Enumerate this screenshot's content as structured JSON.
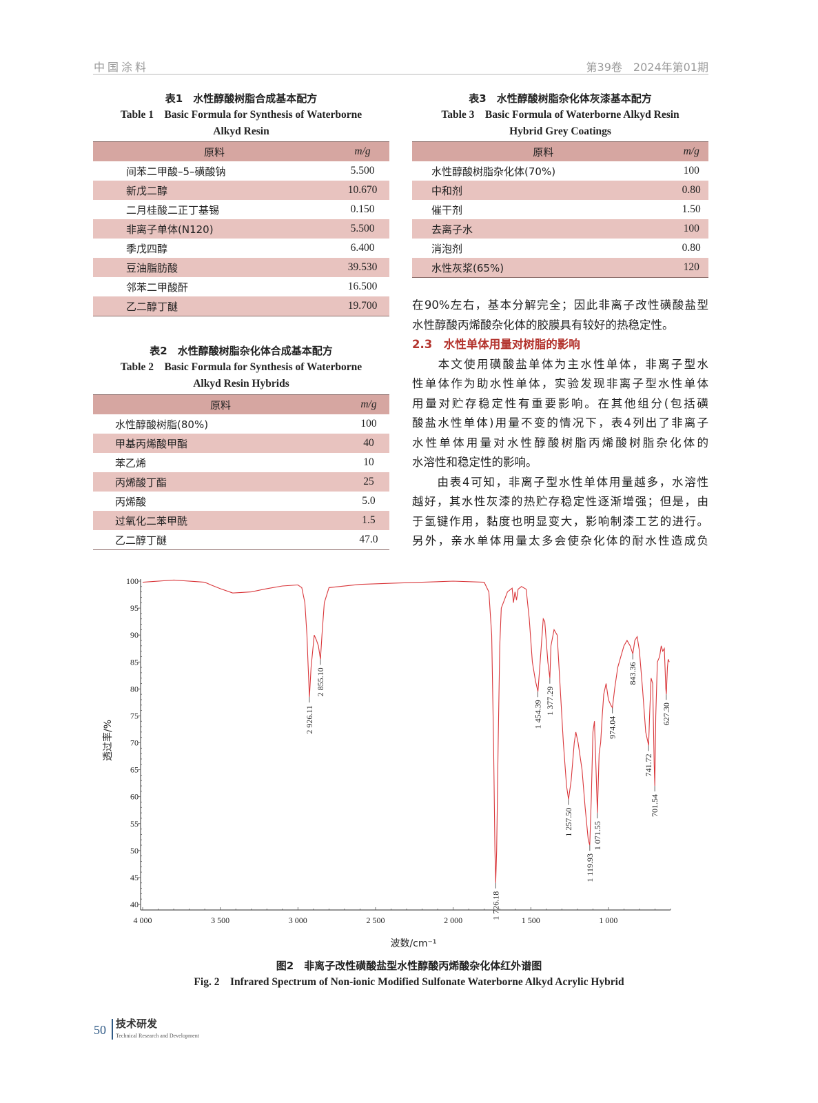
{
  "header": {
    "journal": "中国涂料",
    "issue": "第39卷　2024年第01期"
  },
  "table1": {
    "title_zh": "表1　水性醇酸树脂合成基本配方",
    "title_en_1": "Table 1　Basic Formula for Synthesis of Waterborne",
    "title_en_2": "Alkyd Resin",
    "columns": [
      "原料",
      "m/g"
    ],
    "rows": [
      [
        "间苯二甲酸–5–磺酸钠",
        "5.500"
      ],
      [
        "新戊二醇",
        "10.670"
      ],
      [
        "二月桂酸二正丁基锡",
        "0.150"
      ],
      [
        "非离子单体(N120)",
        "5.500"
      ],
      [
        "季戊四醇",
        "6.400"
      ],
      [
        "豆油脂肪酸",
        "39.530"
      ],
      [
        "邻苯二甲酸酐",
        "16.500"
      ],
      [
        "乙二醇丁醚",
        "19.700"
      ]
    ]
  },
  "table2": {
    "title_zh": "表2　水性醇酸树脂杂化体合成基本配方",
    "title_en_1": "Table 2　Basic Formula for Synthesis of Waterborne",
    "title_en_2": "Alkyd Resin Hybrids",
    "columns": [
      "原料",
      "m/g"
    ],
    "rows": [
      [
        "水性醇酸树脂(80%)",
        "100"
      ],
      [
        "甲基丙烯酸甲酯",
        "40"
      ],
      [
        "苯乙烯",
        "10"
      ],
      [
        "丙烯酸丁酯",
        "25"
      ],
      [
        "丙烯酸",
        "5.0"
      ],
      [
        "过氧化二苯甲酰",
        "1.5"
      ],
      [
        "乙二醇丁醚",
        "47.0"
      ]
    ]
  },
  "table3": {
    "title_zh": "表3　水性醇酸树脂杂化体灰漆基本配方",
    "title_en_1": "Table 3　Basic Formula of Waterborne Alkyd Resin",
    "title_en_2": "Hybrid Grey Coatings",
    "columns": [
      "原料",
      "m/g"
    ],
    "rows": [
      [
        "水性醇酸树脂杂化体(70%)",
        "100"
      ],
      [
        "中和剂",
        "0.80"
      ],
      [
        "催干剂",
        "1.50"
      ],
      [
        "去离子水",
        "100"
      ],
      [
        "消泡剂",
        "0.80"
      ],
      [
        "水性灰浆(65%)",
        "120"
      ]
    ]
  },
  "body": {
    "lines_a": [
      "在90%左右，基本分解完全；因此非离子改性磺酸盐型",
      "水性醇酸丙烯酸杂化体的胶膜具有较好的热稳定性。"
    ],
    "heading": "2.3　水性单体用量对树脂的影响",
    "lines_b": [
      "　　本文使用磺酸盐单体为主水性单体，非离子型水",
      "性单体作为助水性单体，实验发现非离子型水性单体",
      "用量对贮存稳定性有重要影响。在其他组分(包括磺",
      "酸盐水性单体)用量不变的情况下，表4列出了非离子",
      "水性单体用量对水性醇酸树脂丙烯酸树脂杂化体的",
      "水溶性和稳定性的影响。"
    ],
    "lines_c": [
      "　　由表4可知，非离子型水性单体用量越多，水溶性",
      "越好，其水性灰漆的热贮存稳定性逐渐增强；但是，由",
      "于氢键作用，黏度也明显变大，影响制漆工艺的进行。",
      "另外，亲水单体用量太多会使杂化体的耐水性造成负"
    ]
  },
  "figure": {
    "caption_zh": "图2　非离子改性磺酸盐型水性醇酸丙烯酸杂化体红外谱图",
    "caption_en": "Fig. 2　Infrared Spectrum of Non-ionic Modified Sulfonate Waterborne Alkyd Acrylic Hybrid"
  },
  "chart_data": {
    "type": "line",
    "xlabel": "波数/cm⁻¹",
    "ylabel": "透过率/%",
    "xlim": [
      4000,
      600
    ],
    "ylim": [
      40,
      100
    ],
    "x_reversed": true,
    "xticks": [
      4000,
      3500,
      3000,
      2500,
      2000,
      1500,
      1000
    ],
    "xtick_labels": [
      "4 000",
      "3 500",
      "3 000",
      "2 500",
      "2 000",
      "1 500",
      "1 000"
    ],
    "yticks": [
      40,
      45,
      50,
      55,
      60,
      65,
      70,
      75,
      80,
      85,
      90,
      95,
      100
    ],
    "grid": false,
    "line_color": "#d9363a",
    "series": [
      {
        "points": [
          [
            4000,
            99.8
          ],
          [
            3800,
            100.2
          ],
          [
            3600,
            99.8
          ],
          [
            3560,
            99.3
          ],
          [
            3500,
            98.6
          ],
          [
            3420,
            97.8
          ],
          [
            3300,
            98.0
          ],
          [
            3200,
            98.6
          ],
          [
            3100,
            99.1
          ],
          [
            3000,
            99.3
          ],
          [
            2975,
            98.8
          ],
          [
            2955,
            96
          ],
          [
            2942,
            90
          ],
          [
            2935,
            85
          ],
          [
            2926,
            78.5
          ],
          [
            2915,
            84
          ],
          [
            2895,
            90
          ],
          [
            2880,
            89
          ],
          [
            2868,
            88
          ],
          [
            2855,
            85.5
          ],
          [
            2845,
            90
          ],
          [
            2830,
            96
          ],
          [
            2800,
            98.8
          ],
          [
            2600,
            99.4
          ],
          [
            2400,
            99.6
          ],
          [
            2200,
            99.8
          ],
          [
            2000,
            100
          ],
          [
            1800,
            99.8
          ],
          [
            1770,
            98
          ],
          [
            1752,
            90
          ],
          [
            1740,
            70
          ],
          [
            1731,
            50
          ],
          [
            1726,
            44
          ],
          [
            1720,
            50
          ],
          [
            1710,
            70
          ],
          [
            1700,
            88
          ],
          [
            1690,
            95
          ],
          [
            1650,
            98
          ],
          [
            1620,
            98.7
          ],
          [
            1612,
            96
          ],
          [
            1602,
            98
          ],
          [
            1592,
            96.5
          ],
          [
            1582,
            98.5
          ],
          [
            1560,
            99
          ],
          [
            1530,
            98.5
          ],
          [
            1510,
            93
          ],
          [
            1490,
            85
          ],
          [
            1470,
            81.5
          ],
          [
            1454,
            79.5
          ],
          [
            1440,
            85
          ],
          [
            1420,
            93
          ],
          [
            1410,
            92.5
          ],
          [
            1390,
            85
          ],
          [
            1377,
            82
          ],
          [
            1370,
            88
          ],
          [
            1350,
            91
          ],
          [
            1330,
            90
          ],
          [
            1310,
            80
          ],
          [
            1290,
            70
          ],
          [
            1270,
            62
          ],
          [
            1257,
            59.5
          ],
          [
            1240,
            63
          ],
          [
            1220,
            70
          ],
          [
            1210,
            72
          ],
          [
            1195,
            70
          ],
          [
            1170,
            65
          ],
          [
            1150,
            58
          ],
          [
            1130,
            52
          ],
          [
            1120,
            51
          ],
          [
            1110,
            60
          ],
          [
            1100,
            72
          ],
          [
            1090,
            74
          ],
          [
            1080,
            65
          ],
          [
            1071,
            57
          ],
          [
            1060,
            68
          ],
          [
            1050,
            70
          ],
          [
            1040,
            75
          ],
          [
            1030,
            79
          ],
          [
            1015,
            81
          ],
          [
            1000,
            78
          ],
          [
            985,
            77
          ],
          [
            974,
            76.5
          ],
          [
            960,
            80
          ],
          [
            940,
            84
          ],
          [
            920,
            86
          ],
          [
            900,
            88
          ],
          [
            880,
            89
          ],
          [
            860,
            88
          ],
          [
            843,
            86.5
          ],
          [
            830,
            89
          ],
          [
            815,
            89.7
          ],
          [
            800,
            87
          ],
          [
            780,
            80
          ],
          [
            760,
            72
          ],
          [
            741,
            69.5
          ],
          [
            735,
            75
          ],
          [
            725,
            82
          ],
          [
            715,
            81
          ],
          [
            705,
            66
          ],
          [
            701,
            62
          ],
          [
            695,
            75
          ],
          [
            685,
            85
          ],
          [
            670,
            86
          ],
          [
            660,
            88
          ],
          [
            650,
            87
          ],
          [
            640,
            87.5
          ],
          [
            630,
            80
          ],
          [
            627,
            79
          ],
          [
            620,
            84
          ],
          [
            615,
            85.5
          ],
          [
            608,
            85
          ]
        ]
      }
    ],
    "peak_labels": [
      {
        "x": 2926.11,
        "y": 78.5,
        "text": "2 926.11"
      },
      {
        "x": 2855.1,
        "y": 85.5,
        "text": "2 855.10"
      },
      {
        "x": 1726.18,
        "y": 44,
        "text": "1 726.18"
      },
      {
        "x": 1454.39,
        "y": 79.5,
        "text": "1 454.39"
      },
      {
        "x": 1377.29,
        "y": 82,
        "text": "1 377.29"
      },
      {
        "x": 1257.5,
        "y": 59.5,
        "text": "1 257.50"
      },
      {
        "x": 1119.93,
        "y": 51,
        "text": "1 119.93"
      },
      {
        "x": 1071.55,
        "y": 57,
        "text": "1 071.55"
      },
      {
        "x": 974.04,
        "y": 76.5,
        "text": "974.04"
      },
      {
        "x": 843.36,
        "y": 86.5,
        "text": "843.36"
      },
      {
        "x": 741.72,
        "y": 69.5,
        "text": "741.72"
      },
      {
        "x": 701.54,
        "y": 62,
        "text": "701.54"
      },
      {
        "x": 627.3,
        "y": 79,
        "text": "627.30"
      }
    ]
  },
  "footer": {
    "page": "50",
    "section_zh": "技术研发",
    "section_en": "Technical Research and Development"
  }
}
